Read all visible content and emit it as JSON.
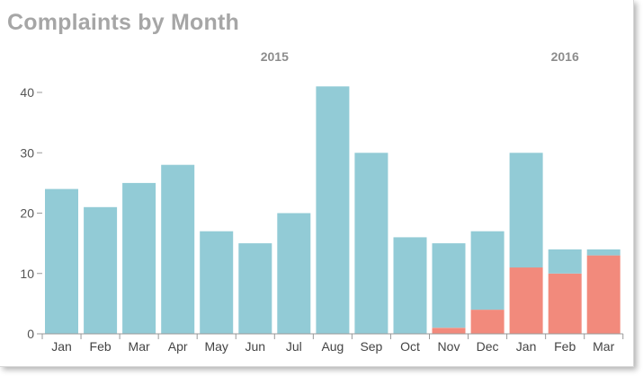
{
  "colors": {
    "series_teal": "#92cbd6",
    "series_red": "#f28a7c",
    "title": "#a6a6a6",
    "axis": "#999999",
    "year_label": "#8c8c8c"
  },
  "chart_data": {
    "type": "bar",
    "stacked": true,
    "title": "Complaints by Month",
    "xlabel": "",
    "ylabel": "",
    "ylim": [
      0,
      42
    ],
    "yticks": [
      0,
      10,
      20,
      30,
      40
    ],
    "grid": false,
    "categories": [
      "Jan",
      "Feb",
      "Mar",
      "Apr",
      "May",
      "Jun",
      "Jul",
      "Aug",
      "Sep",
      "Oct",
      "Nov",
      "Dec",
      "Jan",
      "Feb",
      "Mar"
    ],
    "group_labels": [
      {
        "label": "2015",
        "start": 0,
        "end": 11
      },
      {
        "label": "2016",
        "start": 12,
        "end": 14
      }
    ],
    "series": [
      {
        "color": "#f28a7c",
        "values": [
          0,
          0,
          0,
          0,
          0,
          0,
          0,
          0,
          0,
          0,
          1,
          4,
          11,
          10,
          13
        ]
      },
      {
        "color": "#92cbd6",
        "values": [
          24,
          21,
          25,
          28,
          17,
          15,
          20,
          41,
          30,
          16,
          14,
          13,
          19,
          4,
          1
        ]
      }
    ]
  }
}
